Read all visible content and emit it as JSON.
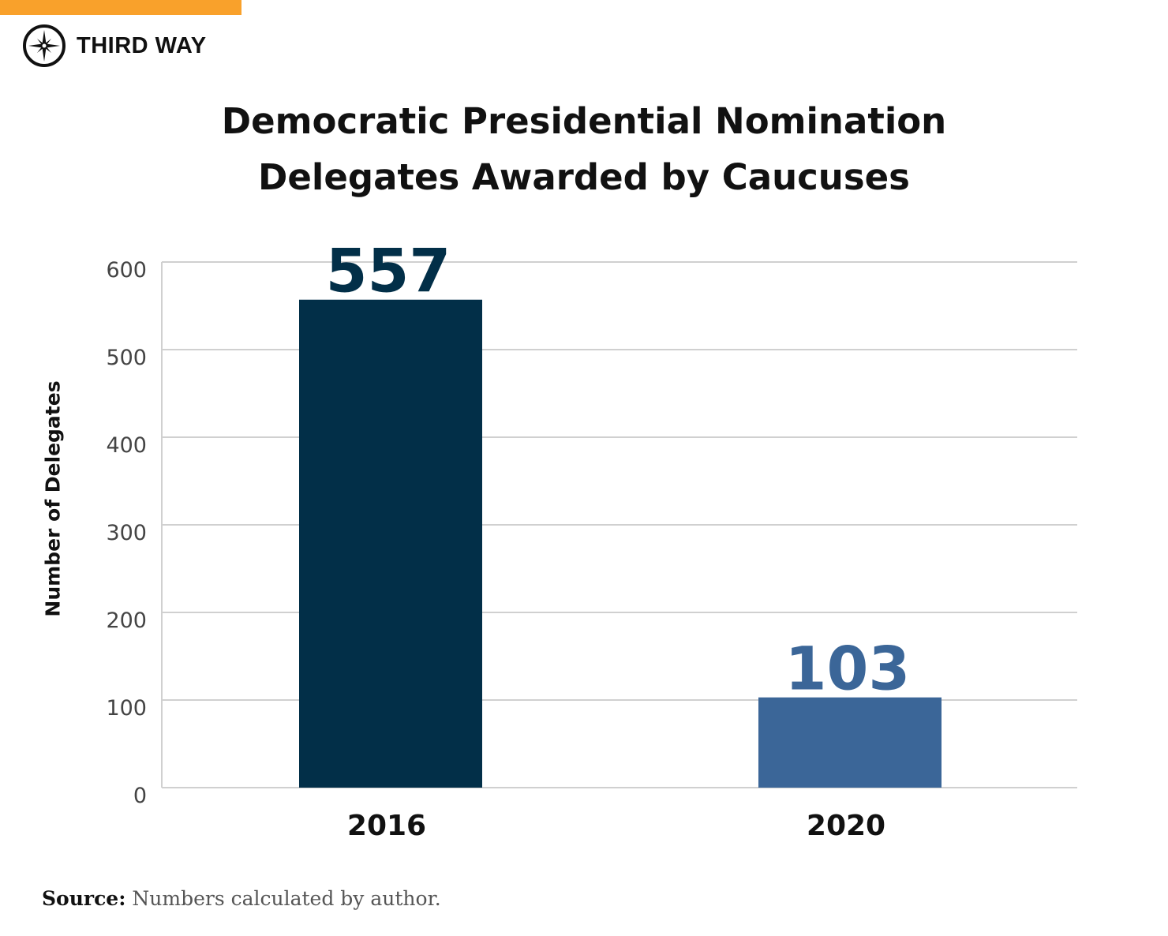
{
  "brand": {
    "name": "THIRD WAY",
    "accent": "#f9a12b"
  },
  "chart_data": {
    "type": "bar",
    "title": "Democratic Presidential Nomination Delegates Awarded by Caucuses",
    "title_lines": [
      "Democratic Presidential Nomination",
      "Delegates Awarded by Caucuses"
    ],
    "xlabel": "",
    "ylabel": "Number of Delegates",
    "categories": [
      "2016",
      "2020"
    ],
    "values": [
      557,
      103
    ],
    "colors": [
      "#022f48",
      "#3b6698"
    ],
    "ylim": [
      0,
      600
    ],
    "yticks": [
      0,
      100,
      200,
      300,
      400,
      500,
      600
    ],
    "grid": true
  },
  "source": {
    "label": "Source:",
    "text": "Numbers calculated by author."
  }
}
